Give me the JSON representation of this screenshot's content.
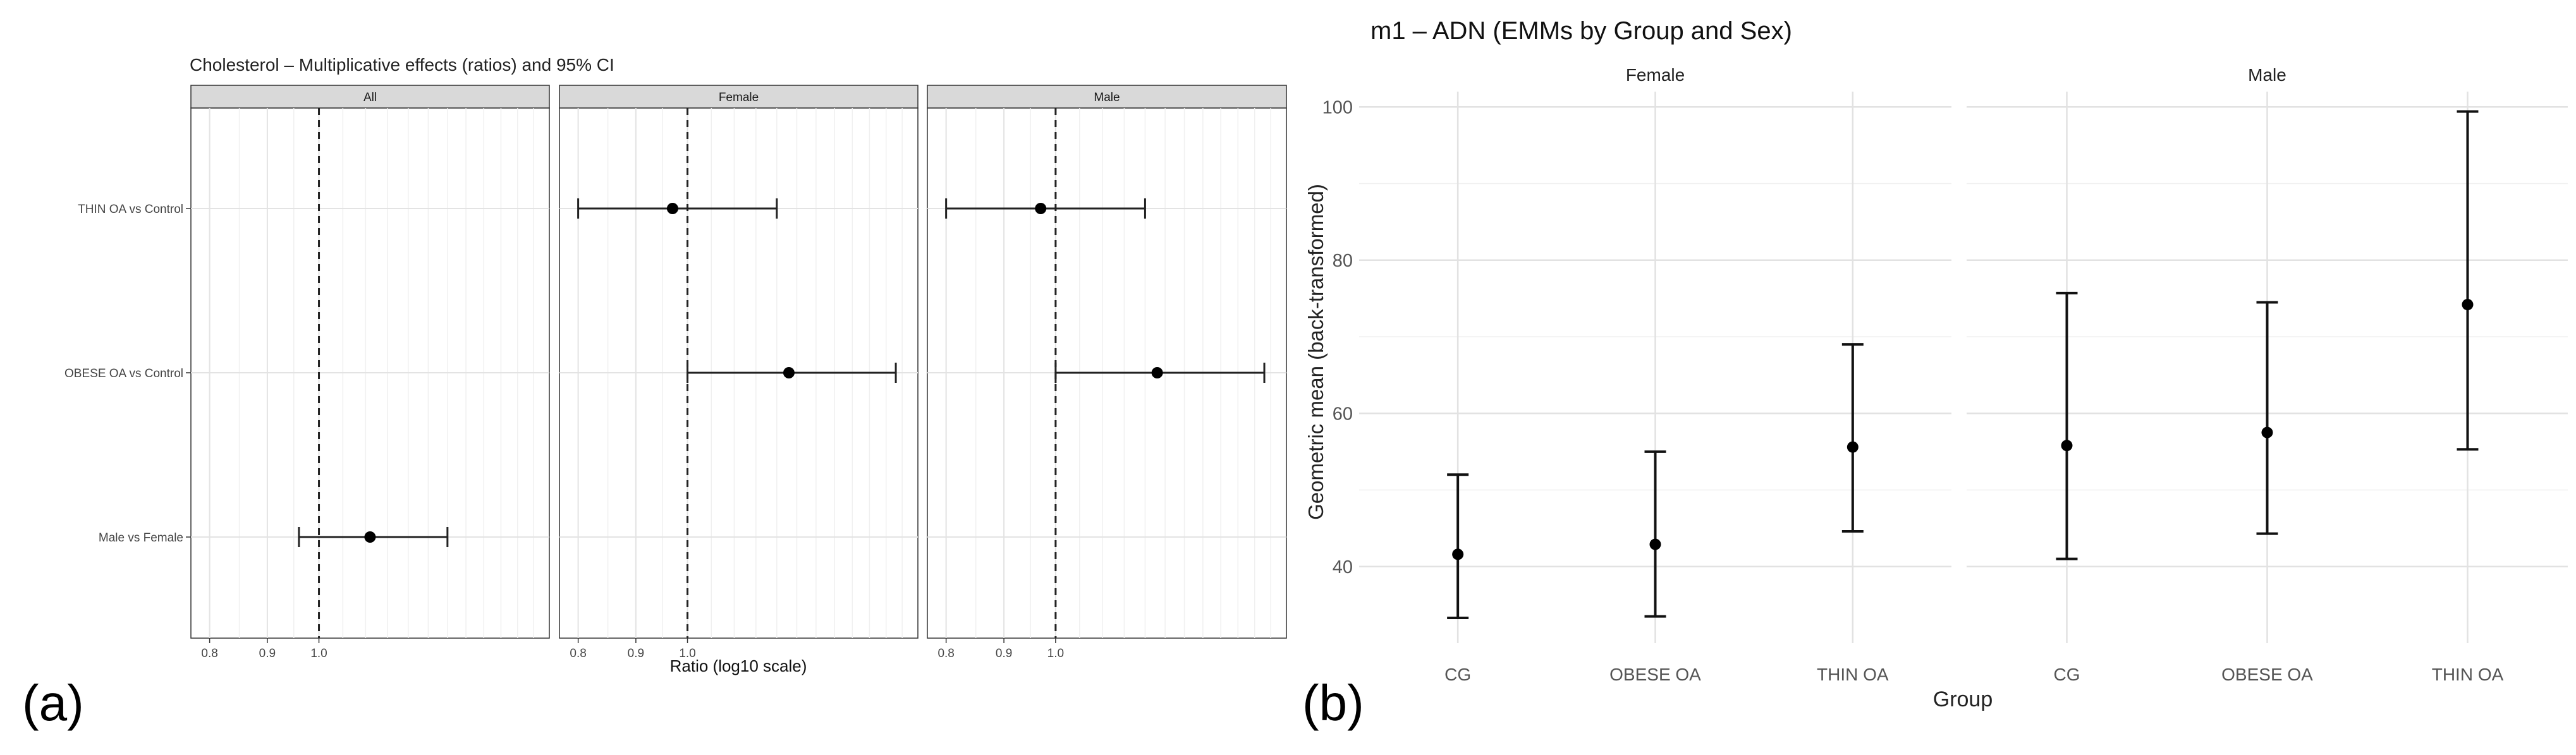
{
  "panel_labels": {
    "a": "(a)",
    "b": "(b)"
  },
  "chart_data": [
    {
      "type": "forest",
      "title": "Cholesterol – Multiplicative effects (ratios) and 95% CI",
      "xlabel": "Ratio (log10 scale)",
      "x_scale": "log10",
      "xlim": [
        0.78,
        1.58
      ],
      "x_ticks": [
        0.8,
        0.9,
        1.0
      ],
      "x_tick_labels": [
        "0.8",
        "0.9",
        "1.0"
      ],
      "minor_gridlines": [
        0.85,
        0.95,
        1.05,
        1.1,
        1.15,
        1.2,
        1.25,
        1.3,
        1.35,
        1.4,
        1.45,
        1.5,
        1.55
      ],
      "reference_line": 1.0,
      "grid": true,
      "facets": [
        "All",
        "Female",
        "Male"
      ],
      "categories": [
        "THIN OA vs Control",
        "OBESE OA vs Control",
        "Male vs Female"
      ],
      "points": [
        {
          "facet": "All",
          "category": "Male vs Female",
          "ratio": 1.11,
          "lower": 0.96,
          "upper": 1.3
        },
        {
          "facet": "Female",
          "category": "THIN OA vs Control",
          "ratio": 0.97,
          "lower": 0.8,
          "upper": 1.2
        },
        {
          "facet": "Female",
          "category": "OBESE OA vs Control",
          "ratio": 1.23,
          "lower": 1.0,
          "upper": 1.53
        },
        {
          "facet": "Male",
          "category": "THIN OA vs Control",
          "ratio": 0.97,
          "lower": 0.8,
          "upper": 1.2
        },
        {
          "facet": "Male",
          "category": "OBESE OA vs Control",
          "ratio": 1.23,
          "lower": 1.0,
          "upper": 1.53
        }
      ]
    },
    {
      "type": "errorbar",
      "title": "m1 – ADN (EMMs by Group and Sex)",
      "xlabel": "Group",
      "ylabel": "Geometric mean (back-transformed)",
      "ylim": [
        30,
        102
      ],
      "y_ticks": [
        40,
        60,
        80,
        100
      ],
      "grid": true,
      "facets": [
        "Female",
        "Male"
      ],
      "categories": [
        "CG",
        "OBESE OA",
        "THIN OA"
      ],
      "series": [
        {
          "facet": "Female",
          "estimate": [
            41.6,
            42.9,
            55.6
          ],
          "lower": [
            33.3,
            33.5,
            44.6
          ],
          "upper": [
            52.0,
            55.0,
            69.0
          ]
        },
        {
          "facet": "Male",
          "estimate": [
            55.8,
            57.5,
            74.2
          ],
          "lower": [
            41.0,
            44.3,
            55.3
          ],
          "upper": [
            75.7,
            74.5,
            99.4
          ]
        }
      ]
    }
  ]
}
